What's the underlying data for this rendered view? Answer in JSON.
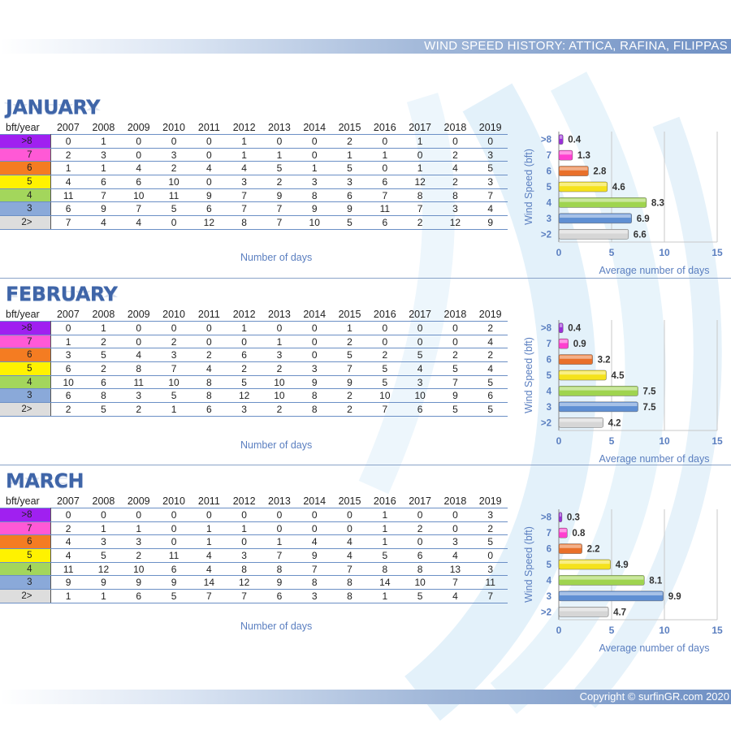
{
  "header": {
    "title": "WIND SPEED HISTORY: ATTICA, RAFINA, FILIPPAS"
  },
  "footer": {
    "copyright": "Copyright © surfinGR.com 2020"
  },
  "table_header": {
    "corner": "bft/year",
    "years": [
      "2007",
      "2008",
      "2009",
      "2010",
      "2011",
      "2012",
      "2013",
      "2014",
      "2015",
      "2016",
      "2017",
      "2018",
      "2019"
    ]
  },
  "colors": {
    ">8": "#a020f0",
    "7": "#ff59d6",
    "6": "#f47c22",
    "5": "#fff200",
    "4": "#a3d65c",
    "3": "#8aa9d9",
    "2>": "#dddddd",
    "accent": "#3f65a8",
    "label": "#5b7fc0"
  },
  "months": [
    {
      "name": "JANUARY",
      "rows": [
        {
          "bft": ">8",
          "values": [
            "0",
            "1",
            "0",
            "0",
            "0",
            "1",
            "0",
            "0",
            "2",
            "0",
            "1",
            "0",
            "0"
          ]
        },
        {
          "bft": "7",
          "values": [
            "2",
            "3",
            "0",
            "3",
            "0",
            "1",
            "1",
            "0",
            "1",
            "1",
            "0",
            "2",
            "3"
          ]
        },
        {
          "bft": "6",
          "values": [
            "1",
            "1",
            "4",
            "2",
            "4",
            "4",
            "5",
            "1",
            "5",
            "0",
            "1",
            "4",
            "5"
          ]
        },
        {
          "bft": "5",
          "values": [
            "4",
            "6",
            "6",
            "10",
            "0",
            "3",
            "2",
            "3",
            "3",
            "6",
            "12",
            "2",
            "3"
          ]
        },
        {
          "bft": "4",
          "values": [
            "11",
            "7",
            "10",
            "11",
            "9",
            "7",
            "9",
            "8",
            "6",
            "7",
            "8",
            "8",
            "7"
          ]
        },
        {
          "bft": "3",
          "values": [
            "6",
            "9",
            "7",
            "5",
            "6",
            "7",
            "7",
            "9",
            "9",
            "11",
            "7",
            "3",
            "4"
          ]
        },
        {
          "bft": "2>",
          "values": [
            "7",
            "4",
            "4",
            "0",
            "12",
            "8",
            "7",
            "10",
            "5",
            "6",
            "2",
            "12",
            "9"
          ]
        }
      ],
      "xlabel": "Number of days",
      "chart_data": {
        "type": "bar",
        "orientation": "horizontal",
        "categories": [
          ">8",
          "7",
          "6",
          "5",
          "4",
          "3",
          ">2"
        ],
        "values": [
          0.4,
          1.3,
          2.8,
          4.6,
          8.3,
          6.9,
          6.6
        ],
        "data_labels": [
          "0.4",
          "1.3",
          "2.8",
          "4.6",
          "8.3",
          "6.9",
          "6.6"
        ],
        "xlim": [
          0,
          15
        ],
        "xticks": [
          "0",
          "5",
          "10",
          "15"
        ],
        "ylabel": "Wind Speed (bft)",
        "xlabel": "Average number of days"
      }
    },
    {
      "name": "FEBRUARY",
      "rows": [
        {
          "bft": ">8",
          "values": [
            "0",
            "1",
            "0",
            "0",
            "0",
            "1",
            "0",
            "0",
            "1",
            "0",
            "0",
            "0",
            "2"
          ]
        },
        {
          "bft": "7",
          "values": [
            "1",
            "2",
            "0",
            "2",
            "0",
            "0",
            "1",
            "0",
            "2",
            "0",
            "0",
            "0",
            "4"
          ]
        },
        {
          "bft": "6",
          "values": [
            "3",
            "5",
            "4",
            "3",
            "2",
            "6",
            "3",
            "0",
            "5",
            "2",
            "5",
            "2",
            "2"
          ]
        },
        {
          "bft": "5",
          "values": [
            "6",
            "2",
            "8",
            "7",
            "4",
            "2",
            "2",
            "3",
            "7",
            "5",
            "4",
            "5",
            "4"
          ]
        },
        {
          "bft": "4",
          "values": [
            "10",
            "6",
            "11",
            "10",
            "8",
            "5",
            "10",
            "9",
            "9",
            "5",
            "3",
            "7",
            "5"
          ]
        },
        {
          "bft": "3",
          "values": [
            "6",
            "8",
            "3",
            "5",
            "8",
            "12",
            "10",
            "8",
            "2",
            "10",
            "10",
            "9",
            "6"
          ]
        },
        {
          "bft": "2>",
          "values": [
            "2",
            "5",
            "2",
            "1",
            "6",
            "3",
            "2",
            "8",
            "2",
            "7",
            "6",
            "5",
            "5"
          ]
        }
      ],
      "xlabel": "Number of days",
      "chart_data": {
        "type": "bar",
        "orientation": "horizontal",
        "categories": [
          ">8",
          "7",
          "6",
          "5",
          "4",
          "3",
          ">2"
        ],
        "values": [
          0.4,
          0.9,
          3.2,
          4.5,
          7.5,
          7.5,
          4.2
        ],
        "data_labels": [
          "0.4",
          "0.9",
          "3.2",
          "4.5",
          "7.5",
          "7.5",
          "4.2"
        ],
        "xlim": [
          0,
          15
        ],
        "xticks": [
          "0",
          "5",
          "10",
          "15"
        ],
        "ylabel": "Wind Speed (bft)",
        "xlabel": "Average number of days"
      }
    },
    {
      "name": "MARCH",
      "rows": [
        {
          "bft": ">8",
          "values": [
            "0",
            "0",
            "0",
            "0",
            "0",
            "0",
            "0",
            "0",
            "0",
            "1",
            "0",
            "0",
            "3"
          ]
        },
        {
          "bft": "7",
          "values": [
            "2",
            "1",
            "1",
            "0",
            "1",
            "1",
            "0",
            "0",
            "0",
            "1",
            "2",
            "0",
            "2"
          ]
        },
        {
          "bft": "6",
          "values": [
            "4",
            "3",
            "3",
            "0",
            "1",
            "0",
            "1",
            "4",
            "4",
            "1",
            "0",
            "3",
            "5"
          ]
        },
        {
          "bft": "5",
          "values": [
            "4",
            "5",
            "2",
            "11",
            "4",
            "3",
            "7",
            "9",
            "4",
            "5",
            "6",
            "4",
            "0"
          ]
        },
        {
          "bft": "4",
          "values": [
            "11",
            "12",
            "10",
            "6",
            "4",
            "8",
            "8",
            "7",
            "7",
            "8",
            "8",
            "13",
            "3"
          ]
        },
        {
          "bft": "3",
          "values": [
            "9",
            "9",
            "9",
            "9",
            "14",
            "12",
            "9",
            "8",
            "8",
            "14",
            "10",
            "7",
            "11"
          ]
        },
        {
          "bft": "2>",
          "values": [
            "1",
            "1",
            "6",
            "5",
            "7",
            "7",
            "6",
            "3",
            "8",
            "1",
            "5",
            "4",
            "7"
          ]
        }
      ],
      "xlabel": "Number of days",
      "chart_data": {
        "type": "bar",
        "orientation": "horizontal",
        "categories": [
          ">8",
          "7",
          "6",
          "5",
          "4",
          "3",
          ">2"
        ],
        "values": [
          0.3,
          0.8,
          2.2,
          4.9,
          8.1,
          9.9,
          4.7
        ],
        "data_labels": [
          "0.3",
          "0.8",
          "2.2",
          "4.9",
          "8.1",
          "9.9",
          "4.7"
        ],
        "xlim": [
          0,
          15
        ],
        "xticks": [
          "0",
          "5",
          "10",
          "15"
        ],
        "ylabel": "Wind Speed (bft)",
        "xlabel": "Average number of days"
      }
    }
  ]
}
